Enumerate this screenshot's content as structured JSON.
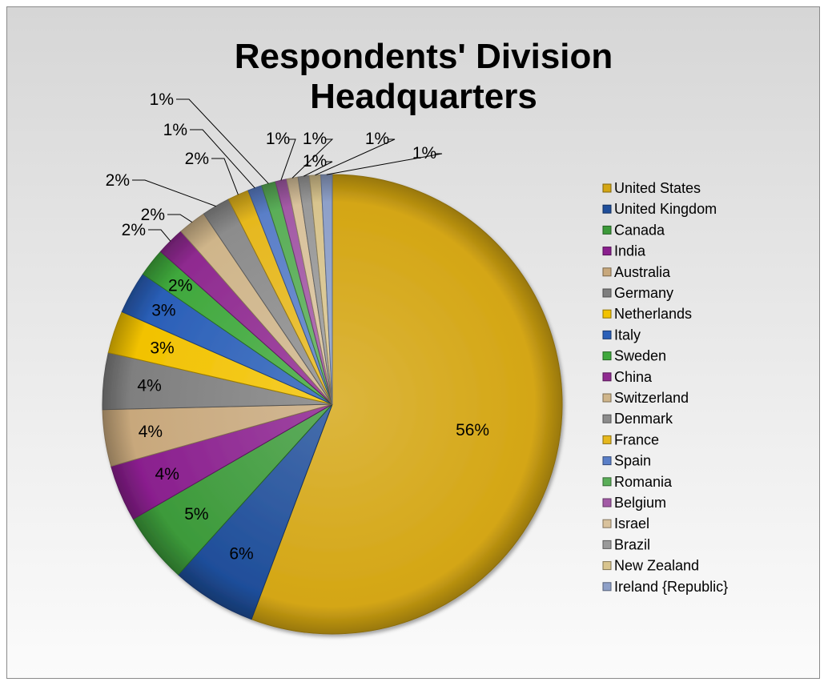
{
  "chart_data": {
    "type": "pie",
    "title": "Respondents' Division Headquarters",
    "title_lines": [
      "Respondents' Division",
      "Headquarters"
    ],
    "categories": [
      "United States",
      "United Kingdom",
      "Canada",
      "India",
      "Australia",
      "Germany",
      "Netherlands",
      "Italy",
      "Sweden",
      "China",
      "Switzerland",
      "Denmark",
      "France",
      "Spain",
      "Romania",
      "Belgium",
      "Israel",
      "Brazil",
      "New Zealand",
      "Ireland {Republic}"
    ],
    "values": [
      56,
      6,
      5,
      4,
      4,
      4,
      3,
      3,
      2,
      2,
      2,
      2,
      1.5,
      1,
      1,
      0.8,
      0.8,
      0.8,
      0.8,
      0.8
    ],
    "data_labels": [
      "56%",
      "6%",
      "5%",
      "4%",
      "4%",
      "4%",
      "3%",
      "3%",
      "2%",
      "2%",
      "2%",
      "2%",
      "2%",
      "1%",
      "1%",
      "1%",
      "1%",
      "1%",
      "1%",
      "1%"
    ],
    "colors": [
      "#d4a614",
      "#1f4e9a",
      "#3c9a3a",
      "#8a1f8e",
      "#c8a87c",
      "#7f7f7f",
      "#f2c200",
      "#2a5fb8",
      "#3fa83c",
      "#8f2a90",
      "#cfb58a",
      "#8c8c8c",
      "#e6b81e",
      "#5a7fc8",
      "#5aae58",
      "#a35aa6",
      "#d9c29c",
      "#9a9a9a",
      "#d8c48e",
      "#8ea0c8"
    ],
    "start_angle_deg": 0,
    "direction": "clockwise",
    "legend_position": "right"
  }
}
